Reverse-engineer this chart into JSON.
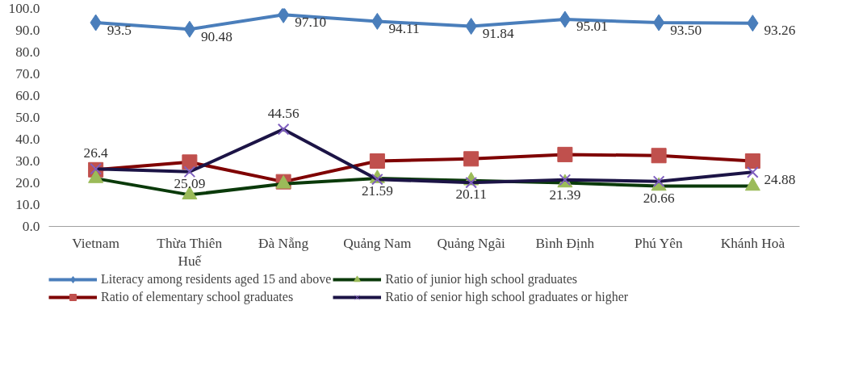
{
  "chart_data": {
    "type": "line",
    "categories": [
      "Vietnam",
      "Thừa Thiên Huế",
      "Đà Nẵng",
      "Quảng Nam",
      "Quảng Ngãi",
      "Bình Định",
      "Phú Yên",
      "Khánh Hoà"
    ],
    "series": [
      {
        "name": "Literacy among residents aged 15 and above",
        "color": "#4a7ebb",
        "marker": "diamond",
        "values": [
          93.5,
          90.48,
          97.1,
          94.11,
          91.84,
          95.01,
          93.5,
          93.26
        ],
        "value_labels": [
          "93.5",
          "90.48",
          "97.10",
          "94.11",
          "91.84",
          "95.01",
          "93.50",
          "93.26"
        ]
      },
      {
        "name": "Ratio of elementary school graduates",
        "color": "#7f0000",
        "marker": "square",
        "values": [
          26,
          29.5,
          20.5,
          30,
          31,
          33,
          32.5,
          30
        ]
      },
      {
        "name": "Ratio of junior high school graduates",
        "color": "#0a3a0a",
        "marker": "triangle",
        "values": [
          22,
          14.5,
          19.5,
          22,
          21,
          20,
          18.5,
          18.5
        ]
      },
      {
        "name": "Ratio of senior high school graduates or higher",
        "color": "#1c1446",
        "marker": "cross",
        "values": [
          26.4,
          25.09,
          44.56,
          21.59,
          20.11,
          21.39,
          20.66,
          24.88
        ],
        "value_labels": [
          "26.4",
          "25.09",
          "44.56",
          "21.59",
          "20.11",
          "21.39",
          "20.66",
          "24.88"
        ]
      }
    ],
    "ylim": [
      0,
      100
    ],
    "yticks": [
      {
        "value": 0,
        "label": "0.0"
      },
      {
        "value": 10,
        "label": "10.0"
      },
      {
        "value": 20,
        "label": "20.0"
      },
      {
        "value": 30,
        "label": "30.0"
      },
      {
        "value": 40,
        "label": "40.0"
      },
      {
        "value": 50,
        "label": "50.0"
      },
      {
        "value": 60,
        "label": "60.0"
      },
      {
        "value": 70,
        "label": "70.0"
      },
      {
        "value": 80,
        "label": "80.0"
      },
      {
        "value": 90,
        "label": "90.0"
      },
      {
        "value": 100,
        "label": "100.0"
      }
    ],
    "grid": false,
    "legend": "bottom"
  }
}
